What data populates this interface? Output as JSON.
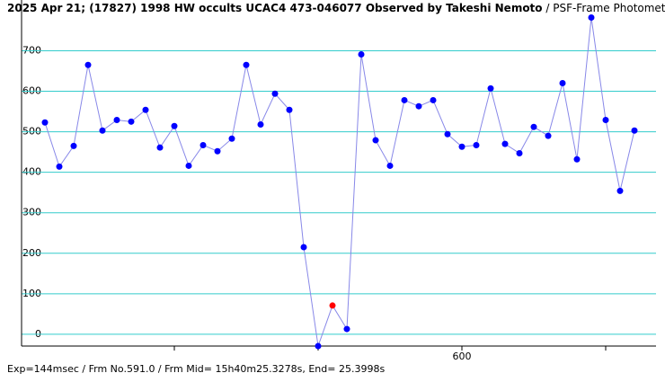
{
  "chart_data": {
    "type": "line",
    "title": "2025 Apr 21; (17827) 1998 HW occults UCAC4 473-046077 Observed by Takeshi Nemoto",
    "subtitle": " / PSF-Frame Photometry /",
    "footer": "Exp=144msec / Frm No.591.0 / Frm Mid= 15h40m25.3278s, End= 25.3998s",
    "x": [
      571,
      572,
      573,
      574,
      575,
      576,
      577,
      578,
      579,
      580,
      581,
      582,
      583,
      584,
      585,
      586,
      587,
      588,
      589,
      590,
      591,
      592,
      593,
      594,
      595,
      596,
      597,
      598,
      599,
      600,
      601,
      602,
      603,
      604,
      605,
      606,
      607,
      608,
      609,
      610,
      611,
      612
    ],
    "series": [
      {
        "color": "#0000ff",
        "line_color": "#8888e8",
        "highlight_x": 591,
        "highlight_color": "#ff0000",
        "values": [
          523,
          414,
          465,
          665,
          503,
          529,
          525,
          554,
          461,
          514,
          416,
          467,
          452,
          483,
          665,
          518,
          594,
          554,
          215,
          -29,
          71,
          13,
          691,
          479,
          416,
          578,
          563,
          578,
          494,
          463,
          467,
          607,
          470,
          447,
          512,
          490,
          620,
          432,
          782,
          529,
          354,
          503
        ]
      }
    ],
    "xlim": [
      569.375,
      613.5
    ],
    "xticks": [
      600
    ],
    "xminor_ticks": [
      580,
      590,
      610
    ],
    "ylim": [
      -29,
      792
    ],
    "yticks": [
      0,
      100,
      200,
      300,
      400,
      500,
      600,
      700
    ],
    "grid": true,
    "grid_color": "#33cccc"
  }
}
